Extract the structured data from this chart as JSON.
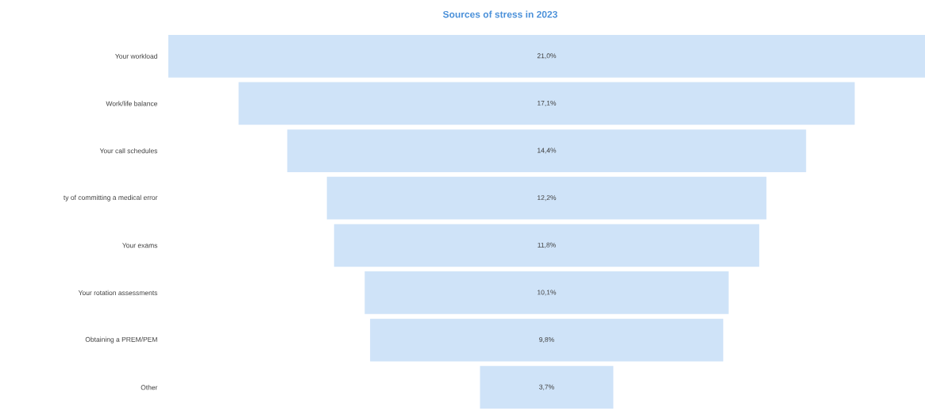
{
  "chart_data": {
    "type": "other",
    "title": "Sources of stress in 2023",
    "categories": [
      "Your workload",
      "Work/life balance",
      "Your call schedules",
      "ty of committing a medical error",
      "Your exams",
      "Your rotation assessments",
      "Obtaining a PREM/PEM",
      "Other"
    ],
    "values": [
      21.0,
      17.1,
      14.4,
      12.2,
      11.8,
      10.1,
      9.8,
      3.7
    ],
    "value_labels": [
      "21,0%",
      "17,1%",
      "14,4%",
      "12,2%",
      "11,8%",
      "10,1%",
      "9,8%",
      "3,7%"
    ],
    "color": "#cfe3f8"
  }
}
